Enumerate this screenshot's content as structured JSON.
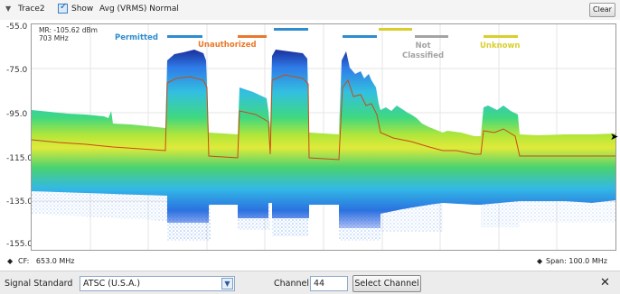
{
  "toolbar": {
    "collapse_icon": "chevron-down-icon",
    "trace": "Trace2",
    "show_checked": true,
    "show_label": "Show",
    "detection": "Avg (VRMS) Normal",
    "clear": "Clear"
  },
  "marker": {
    "line1": "MR: -105.62 dBm",
    "line2": "703 MHz"
  },
  "y_labels": [
    "-55.0",
    "-75.0",
    "-95.0",
    "-115.0",
    "-135.0",
    "-155.0"
  ],
  "annotations": [
    {
      "text": "Permitted",
      "color": "#2e8ccf"
    },
    {
      "text": "Unauthorized",
      "color": "#e8792a"
    },
    {
      "text": "Not\nClassified",
      "color": "#a3a3a3"
    },
    {
      "text": "Unknown",
      "color": "#d9cf2a"
    }
  ],
  "footer": {
    "cf": "CF:",
    "cf_value": "653.0 MHz",
    "span": "Span: 100.0 MHz"
  },
  "controls": {
    "signal_standard_label": "Signal Standard",
    "signal_standard_value": "ATSC (U.S.A.)",
    "channel_label": "Channel",
    "channel_value": "44",
    "select_button": "Select Channel",
    "close_icon": "close-icon"
  }
}
